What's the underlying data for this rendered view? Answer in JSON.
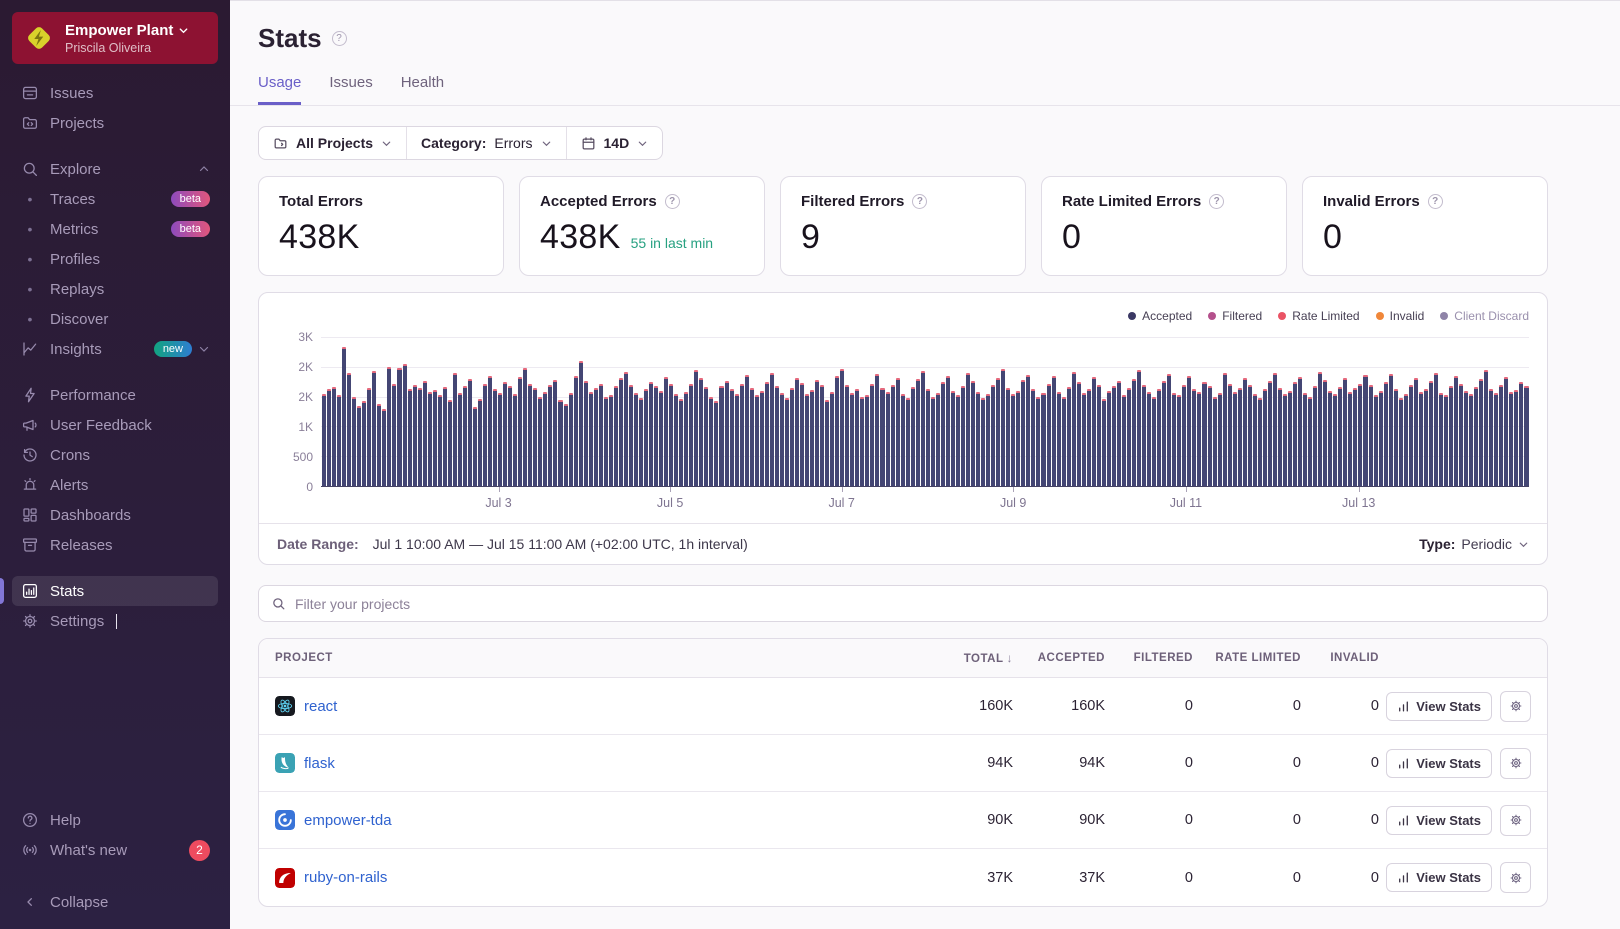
{
  "colors": {
    "accent": "#6a5fc8",
    "sidebar_active_bar": "#8276d6",
    "org_header_bg": "#8d1232",
    "link_blue": "#2f62cf",
    "success_green": "#27a181",
    "alert_red": "#ee4b5f",
    "bar_accepted": "#444674",
    "bar_tip": "#e4697d"
  },
  "icons": {
    "question_glyph": "?"
  },
  "sidebar": {
    "org_name": "Empower Plant",
    "org_user": "Priscila Oliveira",
    "issues": "Issues",
    "projects": "Projects",
    "explore": "Explore",
    "traces": "Traces",
    "traces_badge": "beta",
    "metrics": "Metrics",
    "metrics_badge": "beta",
    "profiles": "Profiles",
    "replays": "Replays",
    "discover": "Discover",
    "insights": "Insights",
    "insights_badge": "new",
    "performance": "Performance",
    "user_feedback": "User Feedback",
    "crons": "Crons",
    "alerts": "Alerts",
    "dashboards": "Dashboards",
    "releases": "Releases",
    "stats": "Stats",
    "settings": "Settings",
    "help": "Help",
    "whats_new": "What's new",
    "whats_new_count": "2",
    "collapse": "Collapse"
  },
  "header": {
    "title": "Stats",
    "tabs": [
      {
        "label": "Usage",
        "active": true
      },
      {
        "label": "Issues",
        "active": false
      },
      {
        "label": "Health",
        "active": false
      }
    ]
  },
  "filters": {
    "all_projects": "All Projects",
    "category_label": "Category:",
    "category_value": "Errors",
    "date_range": "14D"
  },
  "cards": [
    {
      "title": "Total Errors",
      "value": "438K"
    },
    {
      "title": "Accepted Errors",
      "value": "438K",
      "sub": "55 in last min"
    },
    {
      "title": "Filtered Errors",
      "value": "9"
    },
    {
      "title": "Rate Limited Errors",
      "value": "0"
    },
    {
      "title": "Invalid Errors",
      "value": "0"
    }
  ],
  "chart_data": {
    "type": "bar",
    "title": "",
    "xlabel": "",
    "ylabel": "",
    "x_range": "Jul 1 10:00 AM – Jul 15 11:00 AM (+02:00 UTC)",
    "interval": "1h",
    "ymax": 2500,
    "grid": true,
    "legend_position": "top-right",
    "ylabels_top_down": [
      "3K",
      "2K",
      "2K",
      "1K",
      "500",
      "0"
    ],
    "xticks": [
      {
        "label": "Jul 3",
        "pos": 14.7
      },
      {
        "label": "Jul 5",
        "pos": 28.9
      },
      {
        "label": "Jul 7",
        "pos": 43.1
      },
      {
        "label": "Jul 9",
        "pos": 57.3
      },
      {
        "label": "Jul 11",
        "pos": 71.6
      },
      {
        "label": "Jul 13",
        "pos": 85.9
      }
    ],
    "legend": [
      {
        "label": "Accepted",
        "color": "#3b3964",
        "muted": false
      },
      {
        "label": "Filtered",
        "color": "#b4508c",
        "muted": false
      },
      {
        "label": "Rate Limited",
        "color": "#ea5365",
        "muted": false
      },
      {
        "label": "Invalid",
        "color": "#f0873a",
        "muted": false
      },
      {
        "label": "Client Discard",
        "color": "#8f84a8",
        "muted": true
      }
    ],
    "tip_overlay": {
      "color": "#e4697d",
      "approx_units": 35
    },
    "series": [
      {
        "name": "Accepted (errors/hour, approx)",
        "values": [
          1550,
          1620,
          1660,
          1530,
          2340,
          1890,
          1500,
          1340,
          1420,
          1650,
          1930,
          1380,
          1300,
          1990,
          1720,
          1980,
          2050,
          1620,
          1700,
          1650,
          1760,
          1570,
          1610,
          1520,
          1660,
          1450,
          1890,
          1560,
          1680,
          1790,
          1330,
          1460,
          1720,
          1850,
          1620,
          1560,
          1750,
          1680,
          1540,
          1830,
          1980,
          1720,
          1640,
          1500,
          1570,
          1690,
          1780,
          1450,
          1380,
          1560,
          1840,
          2100,
          1760,
          1580,
          1650,
          1720,
          1490,
          1530,
          1680,
          1810,
          1920,
          1700,
          1560,
          1480,
          1620,
          1750,
          1680,
          1590,
          1830,
          1710,
          1540,
          1460,
          1580,
          1720,
          1950,
          1820,
          1660,
          1500,
          1430,
          1680,
          1770,
          1620,
          1550,
          1710,
          1860,
          1640,
          1520,
          1600,
          1740,
          1900,
          1680,
          1560,
          1470,
          1650,
          1820,
          1730,
          1540,
          1610,
          1780,
          1690,
          1450,
          1580,
          1850,
          1960,
          1700,
          1560,
          1620,
          1490,
          1530,
          1720,
          1880,
          1640,
          1580,
          1700,
          1810,
          1550,
          1480,
          1660,
          1790,
          1930,
          1620,
          1500,
          1560,
          1740,
          1850,
          1600,
          1520,
          1680,
          1900,
          1760,
          1580,
          1470,
          1550,
          1690,
          1820,
          1960,
          1650,
          1540,
          1600,
          1780,
          1870,
          1620,
          1490,
          1560,
          1710,
          1840,
          1580,
          1500,
          1660,
          1920,
          1750,
          1560,
          1620,
          1830,
          1700,
          1460,
          1590,
          1680,
          1770,
          1520,
          1640,
          1800,
          1950,
          1700,
          1580,
          1490,
          1630,
          1760,
          1880,
          1560,
          1520,
          1700,
          1850,
          1620,
          1580,
          1740,
          1680,
          1500,
          1560,
          1900,
          1720,
          1580,
          1640,
          1810,
          1690,
          1550,
          1480,
          1620,
          1760,
          1890,
          1650,
          1540,
          1600,
          1750,
          1830,
          1560,
          1500,
          1680,
          1920,
          1780,
          1600,
          1540,
          1660,
          1810,
          1570,
          1640,
          1720,
          1860,
          1690,
          1530,
          1590,
          1750,
          1880,
          1620,
          1480,
          1550,
          1700,
          1820,
          1580,
          1630,
          1770,
          1900,
          1560,
          1520,
          1680,
          1840,
          1710,
          1590,
          1540,
          1660,
          1790,
          1950,
          1620,
          1560,
          1700,
          1830,
          1580,
          1610,
          1750,
          1680
        ]
      }
    ]
  },
  "daterange": {
    "label": "Date Range:",
    "value": "Jul 1 10:00 AM — Jul 15 11:00 AM (+02:00 UTC, 1h interval)",
    "type_label": "Type:",
    "type_value": "Periodic"
  },
  "search": {
    "placeholder": "Filter your projects"
  },
  "table": {
    "col_project": "PROJECT",
    "col_total": "TOTAL",
    "sort_indicator": "↓",
    "col_accepted": "ACCEPTED",
    "col_filtered": "FILTERED",
    "col_rate_limited": "RATE LIMITED",
    "col_invalid": "INVALID",
    "view_stats": "View Stats",
    "rows": [
      {
        "project": "react",
        "total": "160K",
        "accepted": "160K",
        "filtered": "0",
        "rate_limited": "0",
        "invalid": "0"
      },
      {
        "project": "flask",
        "total": "94K",
        "accepted": "94K",
        "filtered": "0",
        "rate_limited": "0",
        "invalid": "0"
      },
      {
        "project": "empower-tda",
        "total": "90K",
        "accepted": "90K",
        "filtered": "0",
        "rate_limited": "0",
        "invalid": "0"
      },
      {
        "project": "ruby-on-rails",
        "total": "37K",
        "accepted": "37K",
        "filtered": "0",
        "rate_limited": "0",
        "invalid": "0"
      }
    ]
  }
}
